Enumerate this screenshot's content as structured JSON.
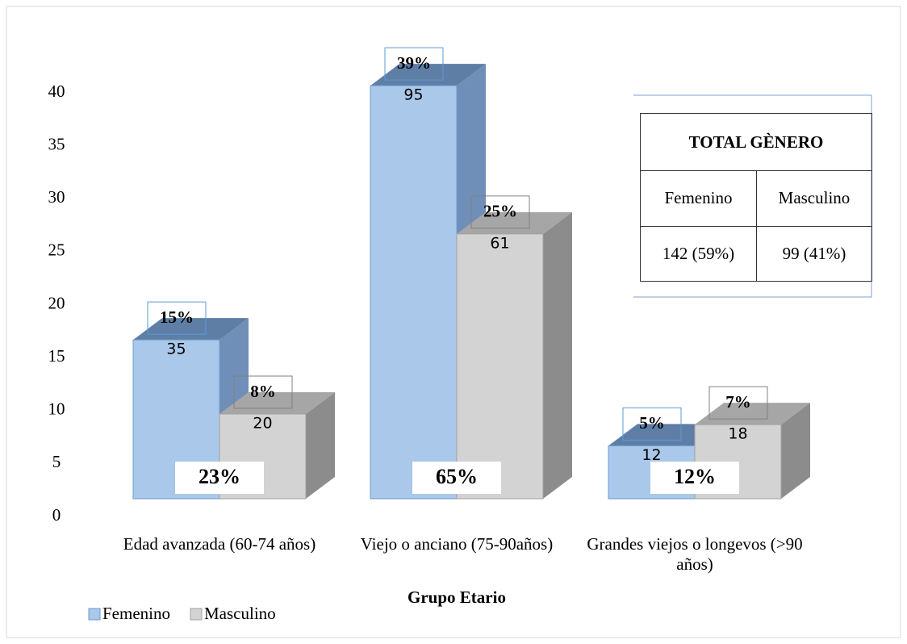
{
  "chart_data": {
    "type": "bar3d",
    "categories": [
      "Edad avanzada (60-74 años)",
      "Viejo o anciano (75-90años)",
      "Grandes viejos o longevos (>90 años)"
    ],
    "x_label": "Grupo Etario",
    "series": [
      {
        "name": "Femenino",
        "color": "#a9c8ea",
        "values": [
          15,
          39,
          5
        ],
        "value_labels": [
          "15%",
          "39%",
          "5%"
        ],
        "counts": [
          35,
          95,
          12
        ]
      },
      {
        "name": "Masculino",
        "color": "#d3d3d3",
        "values": [
          8,
          25,
          7
        ],
        "value_labels": [
          "8%",
          "25%",
          "7%"
        ],
        "counts": [
          20,
          61,
          18
        ]
      }
    ],
    "group_labels": [
      "23%",
      "65%",
      "12%"
    ],
    "ylim": [
      0,
      40
    ],
    "yticks": [
      0,
      5,
      10,
      15,
      20,
      25,
      30,
      35,
      40
    ],
    "legend": "bottom-left",
    "table": {
      "title": "TOTAL GÈNERO",
      "headers": [
        "Femenino",
        "Masculino"
      ],
      "cells": [
        "142 (59%)",
        "99 (41%)"
      ]
    }
  }
}
